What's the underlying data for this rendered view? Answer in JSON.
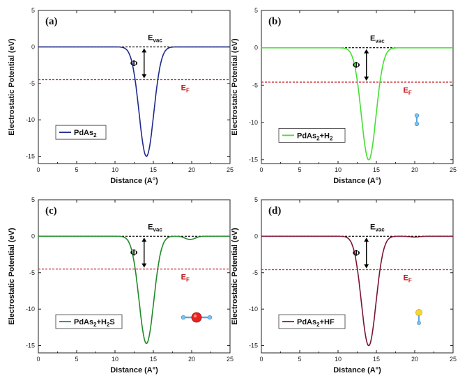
{
  "chart_data": [
    {
      "type": "line",
      "panel_label": "(a)",
      "xlabel": "Distance",
      "xlabel_unit": "(A°)",
      "ylabel": "Electrostatic Potential (eV)",
      "xlim": [
        0,
        25
      ],
      "ylim": [
        -16,
        5
      ],
      "xticks": [
        "0",
        "5",
        "10",
        "15",
        "20",
        "25"
      ],
      "yticks": [
        "5",
        "0",
        "-5",
        "-10",
        "-15"
      ],
      "vacuum_level": 0,
      "fermi_level": -4.5,
      "evac_label": "E",
      "evac_sub": "vac",
      "ef_label": "E",
      "ef_sub": "F",
      "phi_label": "Φ",
      "series": [
        {
          "name": "PdAs",
          "name_sub": "2",
          "name_tail": "",
          "color": "#1f2a8c",
          "min_x": 14.1,
          "min_y": -15.0,
          "width": 1.35,
          "bump_x": 0,
          "bump_y": 0,
          "bump_w": 1
        }
      ],
      "inset": "none"
    },
    {
      "type": "line",
      "panel_label": "(b)",
      "xlabel": "Distance",
      "xlabel_unit": "(A°)",
      "ylabel": "Electrostatic Potential (eV)",
      "xlim": [
        0,
        25
      ],
      "ylim": [
        -15.5,
        5
      ],
      "xticks": [
        "0",
        "5",
        "10",
        "15",
        "20",
        "25"
      ],
      "yticks": [
        "5",
        "0",
        "-5",
        "-10",
        "-15"
      ],
      "vacuum_level": 0,
      "fermi_level": -4.6,
      "evac_label": "E",
      "evac_sub": "vac",
      "ef_label": "E",
      "ef_sub": "F",
      "phi_label": "Φ",
      "series": [
        {
          "name": "PdAs",
          "name_sub": "2",
          "name_tail": "+H",
          "name_tail_sub": "2",
          "color": "#44e032",
          "min_x": 14.0,
          "min_y": -15.0,
          "width": 1.35,
          "bump_x": 0,
          "bump_y": 0,
          "bump_w": 1
        }
      ],
      "inset": "h2"
    },
    {
      "type": "line",
      "panel_label": "(c)",
      "xlabel": "Distance",
      "xlabel_unit": "(A°)",
      "ylabel": "Electrostatic Potential (eV)",
      "xlim": [
        0,
        25
      ],
      "ylim": [
        -16,
        5
      ],
      "xticks": [
        "0",
        "5",
        "10",
        "15",
        "20",
        "25"
      ],
      "yticks": [
        "5",
        "0",
        "-5",
        "-10",
        "-15"
      ],
      "vacuum_level": 0,
      "fermi_level": -4.5,
      "evac_label": "E",
      "evac_sub": "vac",
      "ef_label": "E",
      "ef_sub": "F",
      "phi_label": "Φ",
      "series": [
        {
          "name": "PdAs",
          "name_sub": "2",
          "name_tail": "+H",
          "name_tail_sub": "2",
          "name_tail2": "S",
          "color": "#1f8a28",
          "min_x": 14.1,
          "min_y": -14.7,
          "width": 1.35,
          "bump_x": 19.8,
          "bump_y": -0.45,
          "bump_w": 0.9
        }
      ],
      "inset": "h2s"
    },
    {
      "type": "line",
      "panel_label": "(d)",
      "xlabel": "Distance",
      "xlabel_unit": "(A°)",
      "ylabel": "Electrostatic Potential (eV)",
      "xlim": [
        0,
        25
      ],
      "ylim": [
        -16,
        5
      ],
      "xticks": [
        "0",
        "5",
        "10",
        "15",
        "20",
        "25"
      ],
      "yticks": [
        "5",
        "0",
        "-5",
        "-10",
        "-15"
      ],
      "vacuum_level": 0,
      "fermi_level": -4.6,
      "evac_label": "E",
      "evac_sub": "vac",
      "ef_label": "E",
      "ef_sub": "F",
      "phi_label": "Φ",
      "series": [
        {
          "name": "PdAs",
          "name_sub": "2",
          "name_tail": "+HF",
          "color": "#7a1430",
          "min_x": 14.0,
          "min_y": -15.0,
          "width": 1.35,
          "bump_x": 20.0,
          "bump_y": -0.12,
          "bump_w": 0.9
        }
      ],
      "inset": "hf"
    }
  ]
}
